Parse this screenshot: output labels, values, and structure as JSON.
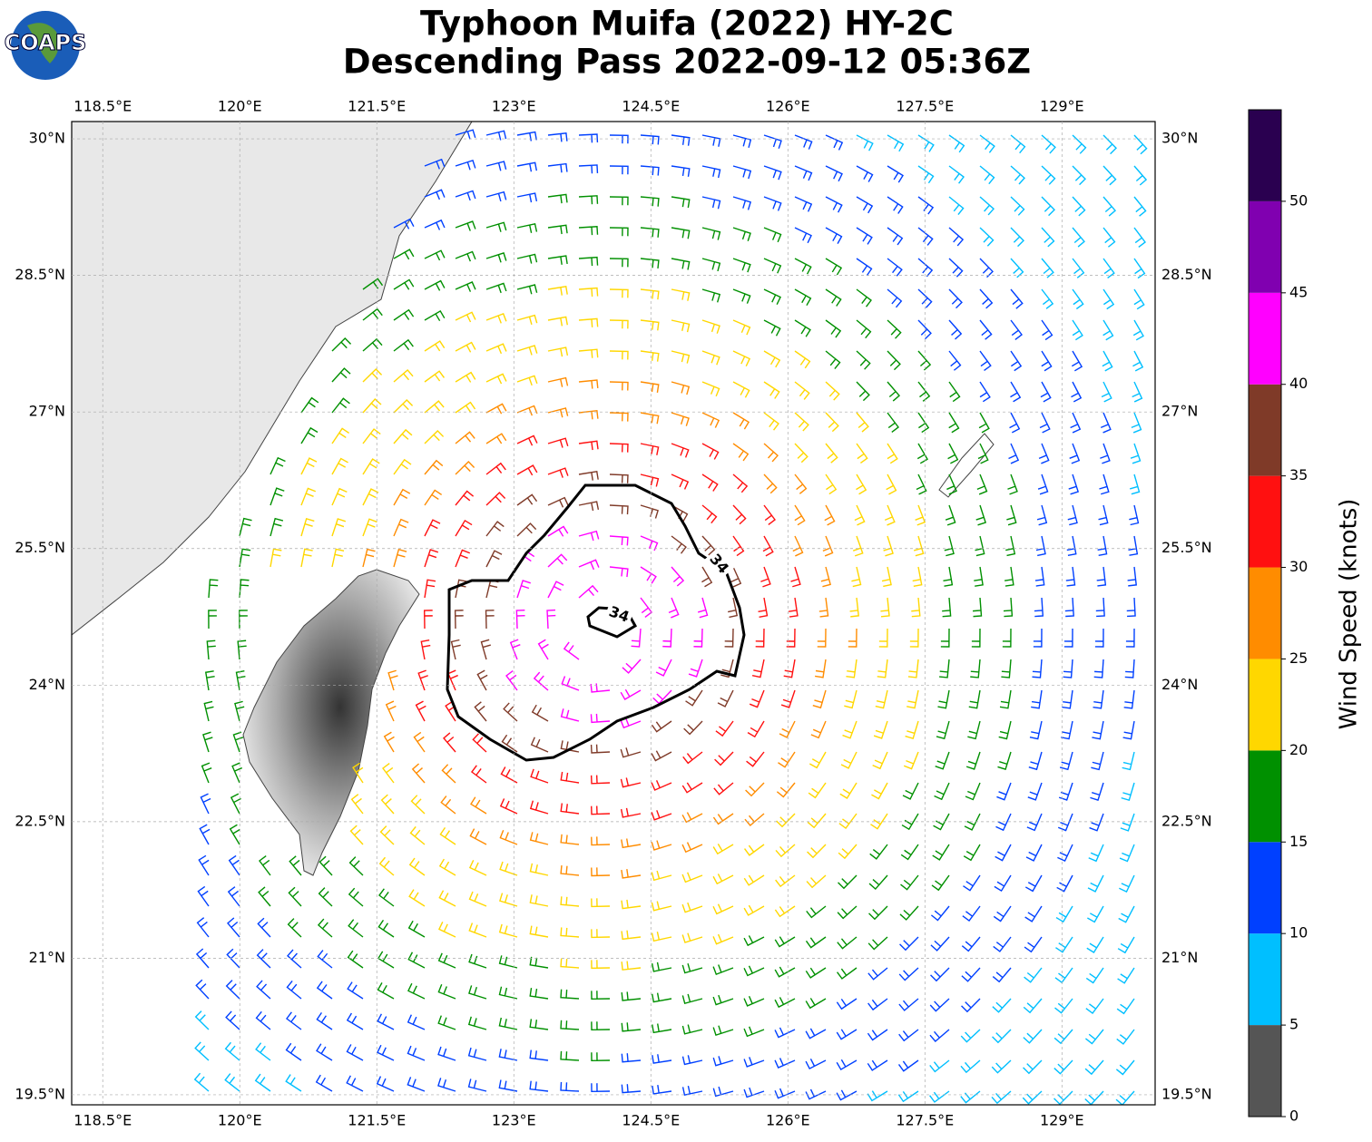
{
  "logo_text": "COAPS",
  "title": "Typhoon Muifa (2022) HY-2C",
  "subtitle": "Descending Pass 2022-09-12 05:36Z",
  "map": {
    "lonlim": [
      118.16,
      130.02
    ],
    "latlim": [
      19.39,
      30.19
    ],
    "xticks": [
      {
        "value": 118.5,
        "label": "118.5°E"
      },
      {
        "value": 120,
        "label": "120°E"
      },
      {
        "value": 121.5,
        "label": "121.5°E"
      },
      {
        "value": 123,
        "label": "123°E"
      },
      {
        "value": 124.5,
        "label": "124.5°E"
      },
      {
        "value": 126,
        "label": "126°E"
      },
      {
        "value": 127.5,
        "label": "127.5°E"
      },
      {
        "value": 129,
        "label": "129°E"
      }
    ],
    "yticks": [
      {
        "value": 30,
        "label": "30°N"
      },
      {
        "value": 28.5,
        "label": "28.5°N"
      },
      {
        "value": 27,
        "label": "27°N"
      },
      {
        "value": 25.5,
        "label": "25.5°N"
      },
      {
        "value": 24,
        "label": "24°N"
      },
      {
        "value": 22.5,
        "label": "22.5°N"
      },
      {
        "value": 21,
        "label": "21°N"
      },
      {
        "value": 19.5,
        "label": "19.5°N"
      }
    ],
    "grid": true,
    "contour_level": 34
  },
  "colorbar": {
    "label": "Wind Speed (knots)",
    "bounds": [
      0,
      55
    ],
    "ticks": [
      0,
      5,
      10,
      15,
      20,
      25,
      30,
      35,
      40,
      45,
      50
    ],
    "colors": [
      "#555555",
      "#00bfff",
      "#0040ff",
      "#009000",
      "#ffd700",
      "#ff8c00",
      "#ff1010",
      "#7f3a28",
      "#ff00ff",
      "#8000b0",
      "#2a0050"
    ]
  }
}
